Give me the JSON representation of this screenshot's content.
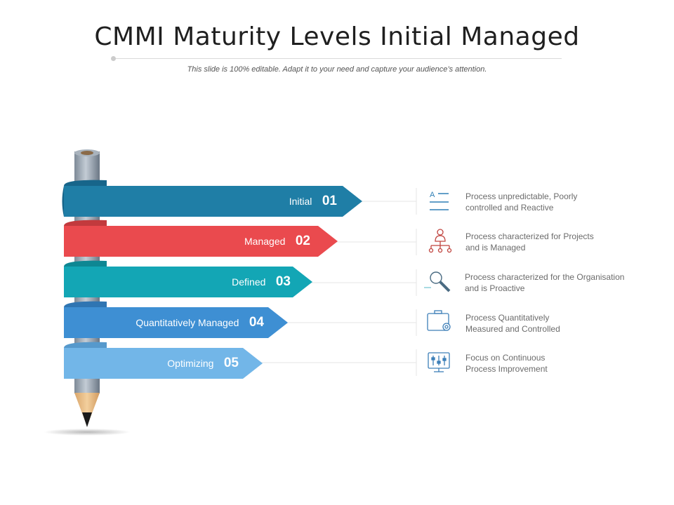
{
  "slide": {
    "title": "CMMI Maturity Levels Initial Managed",
    "subtitle": "This slide is 100% editable. Adapt it to your need and capture your audience’s attention."
  },
  "levels": [
    {
      "name": "Initial",
      "number": "01",
      "color": "#1f7ea6",
      "icon": "checklist-icon",
      "description": [
        "Process unpredictable, Poorly",
        "controlled and Reactive"
      ]
    },
    {
      "name": "Managed",
      "number": "02",
      "color": "#ea4a4e",
      "icon": "org-chart-icon",
      "description": [
        "Process characterized for Projects",
        "and is Managed"
      ]
    },
    {
      "name": "Defined",
      "number": "03",
      "color": "#13a6b5",
      "icon": "magnifier-icon",
      "description": [
        "Process characterized for the Organisation",
        "and is Proactive"
      ]
    },
    {
      "name": "Quantitatively Managed",
      "number": "04",
      "color": "#3e8fd3",
      "icon": "briefcase-gear-icon",
      "description": [
        "Process Quantitatively",
        "Measured and Controlled"
      ]
    },
    {
      "name": "Optimizing",
      "number": "05",
      "color": "#72b6e8",
      "icon": "monitor-sliders-icon",
      "description": [
        "Focus on Continuous",
        "Process Improvement"
      ]
    }
  ]
}
